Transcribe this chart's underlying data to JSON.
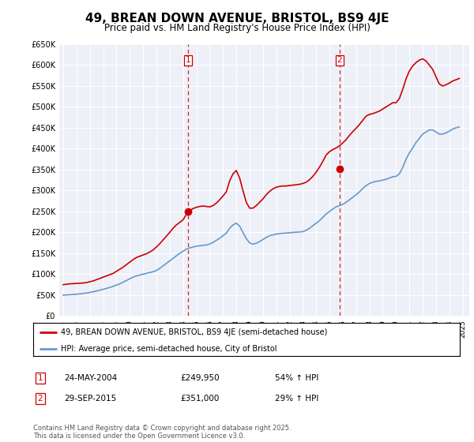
{
  "title": "49, BREAN DOWN AVENUE, BRISTOL, BS9 4JE",
  "subtitle": "Price paid vs. HM Land Registry's House Price Index (HPI)",
  "title_fontsize": 11,
  "subtitle_fontsize": 8.5,
  "background_color": "#ffffff",
  "plot_bg_color": "#eef0f8",
  "grid_color": "#ffffff",
  "ylim": [
    0,
    650000
  ],
  "yticks": [
    0,
    50000,
    100000,
    150000,
    200000,
    250000,
    300000,
    350000,
    400000,
    450000,
    500000,
    550000,
    600000,
    650000
  ],
  "ytick_labels": [
    "£0",
    "£50K",
    "£100K",
    "£150K",
    "£200K",
    "£250K",
    "£300K",
    "£350K",
    "£400K",
    "£450K",
    "£500K",
    "£550K",
    "£600K",
    "£650K"
  ],
  "xlim_start": 1994.7,
  "xlim_end": 2025.5,
  "xticks": [
    1995,
    1996,
    1997,
    1998,
    1999,
    2000,
    2001,
    2002,
    2003,
    2004,
    2005,
    2006,
    2007,
    2008,
    2009,
    2010,
    2011,
    2012,
    2013,
    2014,
    2015,
    2016,
    2017,
    2018,
    2019,
    2020,
    2021,
    2022,
    2023,
    2024,
    2025
  ],
  "red_line_color": "#cc0000",
  "blue_line_color": "#6699cc",
  "sale1_x": 2004.39,
  "sale1_y": 249950,
  "sale1_label": "1",
  "sale2_x": 2015.75,
  "sale2_y": 351000,
  "sale2_label": "2",
  "legend_label_red": "49, BREAN DOWN AVENUE, BRISTOL, BS9 4JE (semi-detached house)",
  "legend_label_blue": "HPI: Average price, semi-detached house, City of Bristol",
  "annotation1_date": "24-MAY-2004",
  "annotation1_price": "£249,950",
  "annotation1_hpi": "54% ↑ HPI",
  "annotation2_date": "29-SEP-2015",
  "annotation2_price": "£351,000",
  "annotation2_hpi": "29% ↑ HPI",
  "footer": "Contains HM Land Registry data © Crown copyright and database right 2025.\nThis data is licensed under the Open Government Licence v3.0.",
  "hpi_x": [
    1995.0,
    1995.25,
    1995.5,
    1995.75,
    1996.0,
    1996.25,
    1996.5,
    1996.75,
    1997.0,
    1997.25,
    1997.5,
    1997.75,
    1998.0,
    1998.25,
    1998.5,
    1998.75,
    1999.0,
    1999.25,
    1999.5,
    1999.75,
    2000.0,
    2000.25,
    2000.5,
    2000.75,
    2001.0,
    2001.25,
    2001.5,
    2001.75,
    2002.0,
    2002.25,
    2002.5,
    2002.75,
    2003.0,
    2003.25,
    2003.5,
    2003.75,
    2004.0,
    2004.25,
    2004.5,
    2004.75,
    2005.0,
    2005.25,
    2005.5,
    2005.75,
    2006.0,
    2006.25,
    2006.5,
    2006.75,
    2007.0,
    2007.25,
    2007.5,
    2007.75,
    2008.0,
    2008.25,
    2008.5,
    2008.75,
    2009.0,
    2009.25,
    2009.5,
    2009.75,
    2010.0,
    2010.25,
    2010.5,
    2010.75,
    2011.0,
    2011.25,
    2011.5,
    2011.75,
    2012.0,
    2012.25,
    2012.5,
    2012.75,
    2013.0,
    2013.25,
    2013.5,
    2013.75,
    2014.0,
    2014.25,
    2014.5,
    2014.75,
    2015.0,
    2015.25,
    2015.5,
    2015.75,
    2016.0,
    2016.25,
    2016.5,
    2016.75,
    2017.0,
    2017.25,
    2017.5,
    2017.75,
    2018.0,
    2018.25,
    2018.5,
    2018.75,
    2019.0,
    2019.25,
    2019.5,
    2019.75,
    2020.0,
    2020.25,
    2020.5,
    2020.75,
    2021.0,
    2021.25,
    2021.5,
    2021.75,
    2022.0,
    2022.25,
    2022.5,
    2022.75,
    2023.0,
    2023.25,
    2023.5,
    2023.75,
    2024.0,
    2024.25,
    2024.5,
    2024.75
  ],
  "hpi_y": [
    50000,
    50500,
    51000,
    51500,
    52000,
    53000,
    54000,
    55000,
    56500,
    58000,
    60000,
    62000,
    64000,
    66000,
    68500,
    71000,
    74000,
    77000,
    81000,
    85000,
    89000,
    93000,
    96000,
    98000,
    100000,
    102000,
    104000,
    106000,
    109000,
    114000,
    120000,
    126000,
    132000,
    138000,
    144000,
    150000,
    155000,
    160000,
    163000,
    165000,
    167000,
    168000,
    169000,
    170000,
    172000,
    176000,
    181000,
    186000,
    192000,
    198000,
    210000,
    218000,
    222000,
    215000,
    200000,
    185000,
    175000,
    172000,
    174000,
    178000,
    183000,
    188000,
    192000,
    194000,
    196000,
    197000,
    198000,
    198500,
    199000,
    200000,
    200500,
    201000,
    202000,
    205000,
    210000,
    216000,
    222000,
    228000,
    236000,
    244000,
    250000,
    256000,
    261000,
    264000,
    267000,
    272000,
    278000,
    284000,
    290000,
    297000,
    305000,
    312000,
    317000,
    320000,
    322000,
    323000,
    325000,
    327000,
    330000,
    333000,
    334000,
    340000,
    355000,
    375000,
    390000,
    402000,
    415000,
    425000,
    435000,
    440000,
    445000,
    445000,
    440000,
    435000,
    435000,
    438000,
    442000,
    447000,
    450000,
    452000
  ],
  "red_x": [
    1995.0,
    1995.25,
    1995.5,
    1995.75,
    1996.0,
    1996.25,
    1996.5,
    1996.75,
    1997.0,
    1997.25,
    1997.5,
    1997.75,
    1998.0,
    1998.25,
    1998.5,
    1998.75,
    1999.0,
    1999.25,
    1999.5,
    1999.75,
    2000.0,
    2000.25,
    2000.5,
    2000.75,
    2001.0,
    2001.25,
    2001.5,
    2001.75,
    2002.0,
    2002.25,
    2002.5,
    2002.75,
    2003.0,
    2003.25,
    2003.5,
    2003.75,
    2004.0,
    2004.25,
    2004.5,
    2004.75,
    2005.0,
    2005.25,
    2005.5,
    2005.75,
    2006.0,
    2006.25,
    2006.5,
    2006.75,
    2007.0,
    2007.25,
    2007.5,
    2007.75,
    2008.0,
    2008.25,
    2008.5,
    2008.75,
    2009.0,
    2009.25,
    2009.5,
    2009.75,
    2010.0,
    2010.25,
    2010.5,
    2010.75,
    2011.0,
    2011.25,
    2011.5,
    2011.75,
    2012.0,
    2012.25,
    2012.5,
    2012.75,
    2013.0,
    2013.25,
    2013.5,
    2013.75,
    2014.0,
    2014.25,
    2014.5,
    2014.75,
    2015.0,
    2015.25,
    2015.5,
    2015.75,
    2016.0,
    2016.25,
    2016.5,
    2016.75,
    2017.0,
    2017.25,
    2017.5,
    2017.75,
    2018.0,
    2018.25,
    2018.5,
    2018.75,
    2019.0,
    2019.25,
    2019.5,
    2019.75,
    2020.0,
    2020.25,
    2020.5,
    2020.75,
    2021.0,
    2021.25,
    2021.5,
    2021.75,
    2022.0,
    2022.25,
    2022.5,
    2022.75,
    2023.0,
    2023.25,
    2023.5,
    2023.75,
    2024.0,
    2024.25,
    2024.5,
    2024.75
  ],
  "red_y": [
    75000,
    76000,
    77000,
    77500,
    78000,
    78500,
    79000,
    80000,
    82000,
    84000,
    87000,
    90000,
    93000,
    96000,
    99000,
    102000,
    107000,
    112000,
    117000,
    123000,
    129000,
    135000,
    140000,
    143000,
    146000,
    149000,
    153000,
    158000,
    165000,
    173000,
    182000,
    191000,
    200000,
    210000,
    218000,
    224000,
    230000,
    243000,
    252000,
    257000,
    260000,
    262000,
    263000,
    262000,
    261000,
    264000,
    270000,
    278000,
    287000,
    297000,
    323000,
    340000,
    348000,
    330000,
    300000,
    272000,
    258000,
    258000,
    264000,
    272000,
    280000,
    290000,
    298000,
    304000,
    308000,
    310000,
    311000,
    311000,
    312000,
    313000,
    314000,
    315000,
    317000,
    320000,
    326000,
    334000,
    344000,
    356000,
    370000,
    385000,
    393000,
    398000,
    402000,
    407000,
    414000,
    422000,
    432000,
    441000,
    449000,
    458000,
    468000,
    478000,
    482000,
    484000,
    487000,
    490000,
    495000,
    500000,
    505000,
    510000,
    510000,
    520000,
    542000,
    567000,
    586000,
    598000,
    606000,
    612000,
    615000,
    610000,
    600000,
    590000,
    572000,
    555000,
    550000,
    553000,
    557000,
    562000,
    565000,
    568000
  ]
}
